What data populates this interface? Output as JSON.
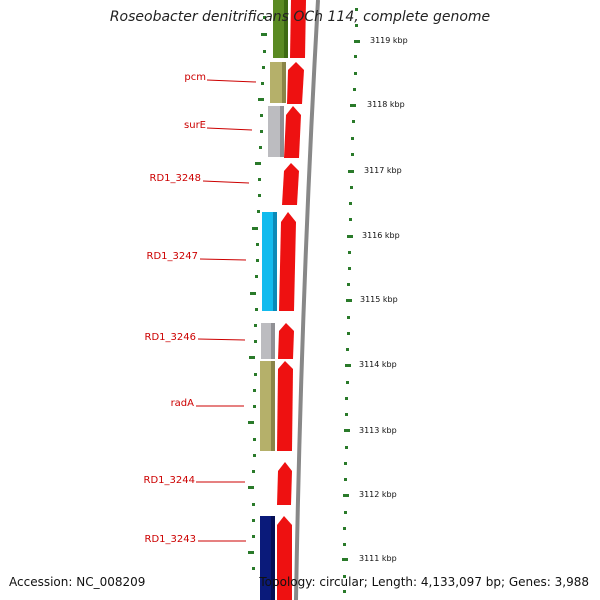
{
  "title": "Roseobacter denitrificans OCh 114, complete genome",
  "footer": {
    "accession": "Accession: NC_008209",
    "stats": "Topology: circular; Length: 4,133,097 bp; Genes: 3,988"
  },
  "colors": {
    "label": "#cc0000",
    "cds_forward": "#ee1111",
    "ticks": "#226622",
    "backbone": "#888888"
  },
  "gene_labels": [
    "pcm",
    "surE",
    "RD1_3248",
    "RD1_3247",
    "RD1_3246",
    "radA",
    "RD1_3244",
    "RD1_3243"
  ],
  "ticks": [
    "3119 kbp",
    "3118 kbp",
    "3117 kbp",
    "3116 kbp",
    "3115 kbp",
    "3114 kbp",
    "3113 kbp",
    "3112 kbp",
    "3111 kbp"
  ],
  "cog_tracks": [
    {
      "name": "green",
      "color": "#5a8a22"
    },
    {
      "name": "khaki-pcm",
      "color": "#b5b06a"
    },
    {
      "name": "grey-surE",
      "color": "#b8b8bc"
    },
    {
      "name": "cyan-3247",
      "color": "#11bbee"
    },
    {
      "name": "grey-3246",
      "color": "#b8b8bc"
    },
    {
      "name": "khaki-radA",
      "color": "#b5b06a"
    },
    {
      "name": "navy-3243",
      "color": "#0a1a7a"
    }
  ]
}
